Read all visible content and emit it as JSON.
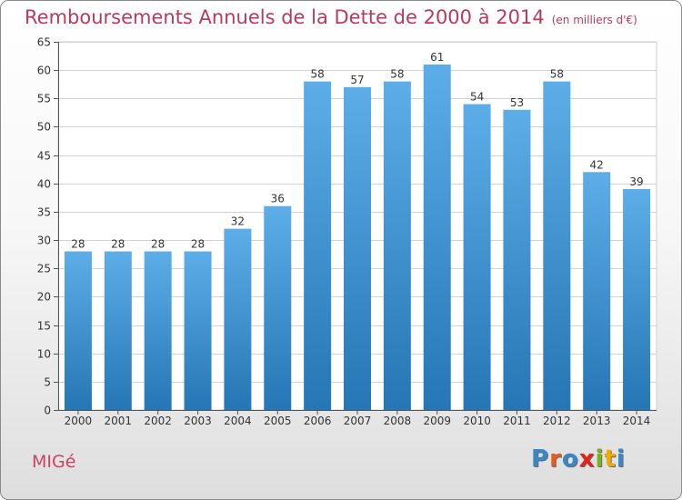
{
  "header": {
    "title": "Remboursements Annuels de la Dette de 2000 à 2014",
    "unit": "(en milliers d'€)"
  },
  "footer": {
    "commune": "MIGé",
    "brand": "Proxiti",
    "brand_letters": [
      "P",
      "r",
      "o",
      "x",
      "i",
      "t",
      "i"
    ],
    "brand_colors": [
      "#3a87c8",
      "#e85b1e",
      "#3a87c8",
      "#e2231a",
      "#7ab317",
      "#f2a900",
      "#3a87c8"
    ]
  },
  "chart_data": {
    "type": "bar",
    "title": "Remboursements Annuels de la Dette de 2000 à 2014",
    "xlabel": "",
    "ylabel": "",
    "categories": [
      "2000",
      "2001",
      "2002",
      "2003",
      "2004",
      "2005",
      "2006",
      "2007",
      "2008",
      "2009",
      "2010",
      "2011",
      "2012",
      "2013",
      "2014"
    ],
    "values": [
      28,
      28,
      28,
      28,
      32,
      36,
      58,
      57,
      58,
      61,
      54,
      53,
      58,
      42,
      39
    ],
    "ylim": [
      0,
      65
    ],
    "yticks": [
      0,
      5,
      10,
      15,
      20,
      25,
      30,
      35,
      40,
      45,
      50,
      55,
      60,
      65
    ],
    "grid": true,
    "bar_color_top": "#5dade8",
    "bar_color_bottom": "#2676b5"
  }
}
